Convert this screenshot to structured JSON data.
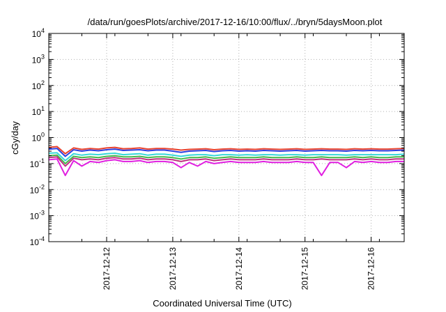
{
  "chart_data": {
    "type": "line",
    "title": "/data/run/goesPlots/archive/2017-12-16/10:00/flux/../bryn/5daysMoon.plot",
    "xlabel": "Coordinated Universal Time (UTC)",
    "ylabel": "cGy/day",
    "y_scale": "log",
    "ylim": [
      0.0001,
      10000
    ],
    "y_ticks": [
      {
        "value": 0.0001,
        "base": "10",
        "exp": "-4"
      },
      {
        "value": 0.001,
        "base": "10",
        "exp": "-3"
      },
      {
        "value": 0.01,
        "base": "10",
        "exp": "-2"
      },
      {
        "value": 0.1,
        "base": "10",
        "exp": "-1"
      },
      {
        "value": 1,
        "base": "10",
        "exp": "0"
      },
      {
        "value": 10,
        "base": "10",
        "exp": "1"
      },
      {
        "value": 100,
        "base": "10",
        "exp": "2"
      },
      {
        "value": 1000,
        "base": "10",
        "exp": "3"
      },
      {
        "value": 10000,
        "base": "10",
        "exp": "4"
      }
    ],
    "xlim": [
      "2017-12-11 03:00",
      "2017-12-16 12:00"
    ],
    "x_ticks": [
      "2017-12-12",
      "2017-12-13",
      "2017-12-14",
      "2017-12-15",
      "2017-12-16"
    ],
    "grid": true,
    "legend": "none",
    "x": [
      "2017-12-11 03:00",
      "2017-12-11 06:00",
      "2017-12-11 09:00",
      "2017-12-11 12:00",
      "2017-12-11 15:00",
      "2017-12-11 18:00",
      "2017-12-11 21:00",
      "2017-12-12 00:00",
      "2017-12-12 03:00",
      "2017-12-12 06:00",
      "2017-12-12 09:00",
      "2017-12-12 12:00",
      "2017-12-12 15:00",
      "2017-12-12 18:00",
      "2017-12-12 21:00",
      "2017-12-13 00:00",
      "2017-12-13 03:00",
      "2017-12-13 06:00",
      "2017-12-13 09:00",
      "2017-12-13 12:00",
      "2017-12-13 15:00",
      "2017-12-13 18:00",
      "2017-12-13 21:00",
      "2017-12-14 00:00",
      "2017-12-14 03:00",
      "2017-12-14 06:00",
      "2017-12-14 09:00",
      "2017-12-14 12:00",
      "2017-12-14 15:00",
      "2017-12-14 18:00",
      "2017-12-14 21:00",
      "2017-12-15 00:00",
      "2017-12-15 03:00",
      "2017-12-15 06:00",
      "2017-12-15 09:00",
      "2017-12-15 12:00",
      "2017-12-15 15:00",
      "2017-12-15 18:00",
      "2017-12-15 21:00",
      "2017-12-16 00:00",
      "2017-12-16 03:00",
      "2017-12-16 06:00",
      "2017-12-16 09:00",
      "2017-12-16 12:00"
    ],
    "series": [
      {
        "color": "#e8412d",
        "values": [
          0.42,
          0.45,
          0.24,
          0.4,
          0.35,
          0.38,
          0.36,
          0.4,
          0.42,
          0.37,
          0.38,
          0.4,
          0.36,
          0.38,
          0.38,
          0.36,
          0.33,
          0.35,
          0.36,
          0.37,
          0.34,
          0.36,
          0.37,
          0.35,
          0.36,
          0.35,
          0.37,
          0.36,
          0.35,
          0.36,
          0.37,
          0.35,
          0.36,
          0.37,
          0.36,
          0.36,
          0.35,
          0.37,
          0.36,
          0.37,
          0.36,
          0.36,
          0.37,
          0.38
        ]
      },
      {
        "color": "#2c3ee0",
        "values": [
          0.36,
          0.38,
          0.19,
          0.34,
          0.3,
          0.33,
          0.31,
          0.34,
          0.36,
          0.32,
          0.33,
          0.34,
          0.31,
          0.33,
          0.33,
          0.3,
          0.27,
          0.3,
          0.31,
          0.32,
          0.29,
          0.31,
          0.32,
          0.3,
          0.31,
          0.3,
          0.32,
          0.31,
          0.3,
          0.31,
          0.32,
          0.3,
          0.31,
          0.32,
          0.31,
          0.31,
          0.3,
          0.32,
          0.31,
          0.32,
          0.31,
          0.31,
          0.32,
          0.33
        ]
      },
      {
        "color": "#35d8d8",
        "values": [
          0.25,
          0.26,
          0.13,
          0.24,
          0.21,
          0.23,
          0.22,
          0.24,
          0.25,
          0.22,
          0.23,
          0.24,
          0.21,
          0.23,
          0.23,
          0.21,
          0.19,
          0.21,
          0.22,
          0.22,
          0.2,
          0.22,
          0.22,
          0.21,
          0.22,
          0.21,
          0.22,
          0.22,
          0.21,
          0.22,
          0.22,
          0.21,
          0.22,
          0.22,
          0.22,
          0.22,
          0.21,
          0.22,
          0.22,
          0.22,
          0.22,
          0.22,
          0.22,
          0.23
        ]
      },
      {
        "color": "#44b84a",
        "values": [
          0.2,
          0.21,
          0.1,
          0.19,
          0.17,
          0.18,
          0.17,
          0.19,
          0.2,
          0.18,
          0.18,
          0.19,
          0.17,
          0.18,
          0.18,
          0.17,
          0.15,
          0.17,
          0.17,
          0.18,
          0.16,
          0.17,
          0.18,
          0.17,
          0.17,
          0.17,
          0.18,
          0.17,
          0.17,
          0.17,
          0.18,
          0.17,
          0.17,
          0.18,
          0.17,
          0.17,
          0.17,
          0.18,
          0.17,
          0.18,
          0.17,
          0.17,
          0.18,
          0.18
        ]
      },
      {
        "color": "#c03080",
        "values": [
          0.17,
          0.18,
          0.08,
          0.16,
          0.14,
          0.15,
          0.14,
          0.16,
          0.17,
          0.15,
          0.15,
          0.16,
          0.14,
          0.15,
          0.15,
          0.14,
          0.12,
          0.14,
          0.14,
          0.15,
          0.13,
          0.14,
          0.15,
          0.14,
          0.14,
          0.14,
          0.15,
          0.14,
          0.14,
          0.14,
          0.15,
          0.14,
          0.14,
          0.15,
          0.14,
          0.14,
          0.14,
          0.15,
          0.14,
          0.15,
          0.14,
          0.14,
          0.15,
          0.15
        ]
      },
      {
        "color": "#e01fe0",
        "values": [
          0.14,
          0.15,
          0.035,
          0.13,
          0.08,
          0.12,
          0.11,
          0.13,
          0.14,
          0.12,
          0.12,
          0.13,
          0.11,
          0.12,
          0.12,
          0.11,
          0.07,
          0.11,
          0.08,
          0.12,
          0.1,
          0.11,
          0.12,
          0.11,
          0.11,
          0.11,
          0.12,
          0.11,
          0.11,
          0.11,
          0.12,
          0.11,
          0.11,
          0.035,
          0.11,
          0.11,
          0.07,
          0.12,
          0.11,
          0.12,
          0.11,
          0.11,
          0.12,
          0.12
        ]
      }
    ]
  }
}
